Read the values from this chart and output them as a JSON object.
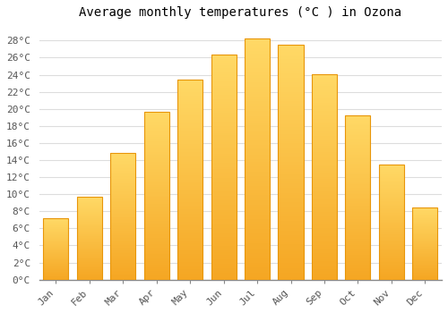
{
  "title": "Average monthly temperatures (°C ) in Ozona",
  "months": [
    "Jan",
    "Feb",
    "Mar",
    "Apr",
    "May",
    "Jun",
    "Jul",
    "Aug",
    "Sep",
    "Oct",
    "Nov",
    "Dec"
  ],
  "values": [
    7.2,
    9.7,
    14.8,
    19.7,
    23.4,
    26.4,
    28.2,
    27.5,
    24.1,
    19.2,
    13.5,
    8.5
  ],
  "bar_color_top": "#FFD966",
  "bar_color_bottom": "#F5A623",
  "bar_edge_color": "#E8960A",
  "ylim": [
    0,
    30
  ],
  "yticks": [
    0,
    2,
    4,
    6,
    8,
    10,
    12,
    14,
    16,
    18,
    20,
    22,
    24,
    26,
    28
  ],
  "ytick_labels": [
    "0°C",
    "2°C",
    "4°C",
    "6°C",
    "8°C",
    "10°C",
    "12°C",
    "14°C",
    "16°C",
    "18°C",
    "20°C",
    "22°C",
    "24°C",
    "26°C",
    "28°C"
  ],
  "background_color": "#FFFFFF",
  "grid_color": "#DDDDDD",
  "title_fontsize": 10,
  "tick_fontsize": 8,
  "font_family": "monospace"
}
